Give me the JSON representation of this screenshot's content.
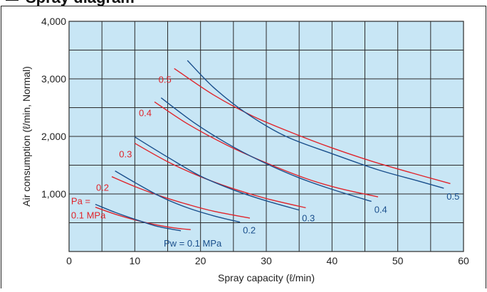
{
  "colors": {
    "plot_bg": "#c8e6f5",
    "grid": "#2b2b2b",
    "pa_curve": "#e0242b",
    "pw_curve": "#1a4f8c",
    "text": "#222222",
    "header_bar": "#111111"
  },
  "header": {
    "title": "Spray diagram"
  },
  "chart_data": {
    "type": "line",
    "xlabel": "Spray capacity (ℓ/min)",
    "ylabel": "Air consumption (ℓ/min, Normal)",
    "xlim": [
      0,
      60
    ],
    "ylim": [
      0,
      4000
    ],
    "x_ticks": [
      0,
      10,
      20,
      30,
      40,
      50,
      60
    ],
    "x_tick_labels": [
      "0",
      "10",
      "20",
      "30",
      "40",
      "50",
      "60"
    ],
    "y_ticks": [
      1000,
      2000,
      3000,
      4000
    ],
    "y_tick_labels": [
      "1,000",
      "2,000",
      "3,000",
      "4,000"
    ],
    "grid": true,
    "series": [
      {
        "group": "Pa",
        "label": "Pa =\n0.1 MPa",
        "color_key": "pa_curve",
        "points": [
          [
            4.0,
            770
          ],
          [
            7,
            650
          ],
          [
            10,
            550
          ],
          [
            13,
            470
          ],
          [
            16,
            410
          ],
          [
            18.5,
            380
          ]
        ]
      },
      {
        "group": "Pa",
        "label": "0.2",
        "color_key": "pa_curve",
        "points": [
          [
            6.5,
            1300
          ],
          [
            10,
            1130
          ],
          [
            14,
            960
          ],
          [
            18,
            820
          ],
          [
            22,
            700
          ],
          [
            27.5,
            580
          ]
        ]
      },
      {
        "group": "Pa",
        "label": "0.3",
        "color_key": "pa_curve",
        "points": [
          [
            10,
            1880
          ],
          [
            15,
            1560
          ],
          [
            20,
            1300
          ],
          [
            25,
            1090
          ],
          [
            30,
            920
          ],
          [
            36,
            760
          ]
        ]
      },
      {
        "group": "Pa",
        "label": "0.4",
        "color_key": "pa_curve",
        "points": [
          [
            13,
            2600
          ],
          [
            18,
            2220
          ],
          [
            24,
            1850
          ],
          [
            30,
            1540
          ],
          [
            36,
            1270
          ],
          [
            41,
            1100
          ],
          [
            47,
            950
          ]
        ]
      },
      {
        "group": "Pa",
        "label": "0.5",
        "color_key": "pa_curve",
        "points": [
          [
            16,
            3180
          ],
          [
            22,
            2720
          ],
          [
            28,
            2350
          ],
          [
            34,
            2060
          ],
          [
            40,
            1800
          ],
          [
            46,
            1570
          ],
          [
            52,
            1370
          ],
          [
            58,
            1180
          ]
        ]
      },
      {
        "group": "Pw",
        "label": "Pw = 0.1 MPa",
        "color_key": "pw_curve",
        "points": [
          [
            4.0,
            820
          ],
          [
            7,
            680
          ],
          [
            10,
            560
          ],
          [
            13,
            450
          ],
          [
            15,
            400
          ],
          [
            17,
            360
          ]
        ]
      },
      {
        "group": "Pw",
        "label": "0.2",
        "color_key": "pw_curve",
        "points": [
          [
            7,
            1400
          ],
          [
            10,
            1200
          ],
          [
            14,
            950
          ],
          [
            18,
            760
          ],
          [
            22,
            620
          ],
          [
            26,
            510
          ]
        ]
      },
      {
        "group": "Pw",
        "label": "0.3",
        "color_key": "pw_curve",
        "points": [
          [
            10,
            1990
          ],
          [
            15,
            1640
          ],
          [
            20,
            1310
          ],
          [
            25,
            1070
          ],
          [
            30,
            880
          ],
          [
            35,
            720
          ]
        ]
      },
      {
        "group": "Pw",
        "label": "0.4",
        "color_key": "pw_curve",
        "points": [
          [
            14,
            2670
          ],
          [
            19,
            2240
          ],
          [
            24,
            1880
          ],
          [
            29,
            1580
          ],
          [
            35,
            1280
          ],
          [
            40,
            1080
          ],
          [
            46,
            870
          ]
        ]
      },
      {
        "group": "Pw",
        "label": "0.5",
        "color_key": "pw_curve",
        "points": [
          [
            18,
            3320
          ],
          [
            22,
            2850
          ],
          [
            27,
            2400
          ],
          [
            33,
            2000
          ],
          [
            40,
            1700
          ],
          [
            47,
            1420
          ],
          [
            53,
            1230
          ],
          [
            57,
            1100
          ]
        ]
      }
    ]
  }
}
